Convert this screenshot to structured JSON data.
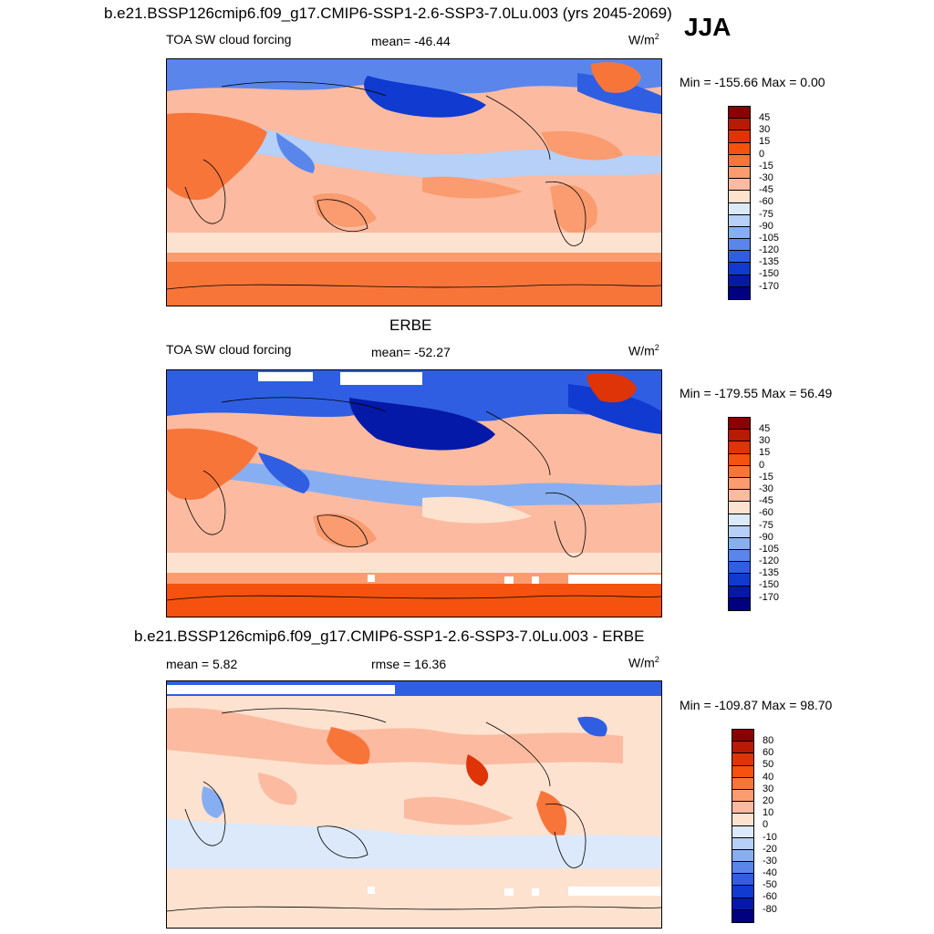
{
  "season": "JJA",
  "panels": [
    {
      "id": "model",
      "title": "b.e21.BSSP126cmip6.f09_g17.CMIP6-SSP1-2.6-SSP3-7.0Lu.003 (yrs 2045-2069)",
      "left_label": "TOA SW cloud forcing",
      "center_label": "mean= -46.44",
      "units": "W/m",
      "units_sup": "2",
      "minmax": "Min = -155.66 Max =   0.00",
      "levels": [
        "45",
        "30",
        "15",
        "0",
        "-15",
        "-30",
        "-45",
        "-60",
        "-75",
        "-90",
        "-105",
        "-120",
        "-135",
        "-150",
        "-170"
      ],
      "colors": [
        "#8b0000",
        "#b81a04",
        "#de3407",
        "#f4520e",
        "#f8753a",
        "#fa9c70",
        "#fcbba0",
        "#fde2d0",
        "#dbe9fa",
        "#b6d0f7",
        "#88aef2",
        "#5a86ec",
        "#2f5ee2",
        "#103ad0",
        "#0519a8",
        "#000080"
      ]
    },
    {
      "id": "obs",
      "title": "ERBE",
      "left_label": "TOA SW cloud forcing",
      "center_label": "mean= -52.27",
      "units": "W/m",
      "units_sup": "2",
      "minmax": "Min = -179.55 Max =  56.49",
      "levels": [
        "45",
        "30",
        "15",
        "0",
        "-15",
        "-30",
        "-45",
        "-60",
        "-75",
        "-90",
        "-105",
        "-120",
        "-135",
        "-150",
        "-170"
      ],
      "colors": [
        "#8b0000",
        "#b81a04",
        "#de3407",
        "#f4520e",
        "#f8753a",
        "#fa9c70",
        "#fcbba0",
        "#fde2d0",
        "#dbe9fa",
        "#b6d0f7",
        "#88aef2",
        "#5a86ec",
        "#2f5ee2",
        "#103ad0",
        "#0519a8",
        "#000080"
      ]
    },
    {
      "id": "diff",
      "title": "b.e21.BSSP126cmip6.f09_g17.CMIP6-SSP1-2.6-SSP3-7.0Lu.003 - ERBE",
      "left_label": "mean =   5.82",
      "center_label": "rmse =  16.36",
      "units": "W/m",
      "units_sup": "2",
      "minmax": "Min = -109.87 Max =  98.70",
      "levels": [
        "80",
        "60",
        "50",
        "40",
        "30",
        "20",
        "10",
        "0",
        "-10",
        "-20",
        "-30",
        "-40",
        "-50",
        "-60",
        "-80"
      ],
      "colors": [
        "#8b0000",
        "#b81a04",
        "#de3407",
        "#f4520e",
        "#f8753a",
        "#fa9c70",
        "#fcbba0",
        "#fde2d0",
        "#dbe9fa",
        "#b6d0f7",
        "#88aef2",
        "#5a86ec",
        "#2f5ee2",
        "#103ad0",
        "#0519a8",
        "#000080"
      ]
    }
  ],
  "chart_data": [
    {
      "type": "heatmap",
      "title": "b.e21.BSSP126cmip6.f09_g17.CMIP6-SSP1-2.6-SSP3-7.0Lu.003 (yrs 2045-2069)",
      "variable": "TOA SW cloud forcing",
      "units": "W/m2",
      "mean": -46.44,
      "min": -155.66,
      "max": 0.0,
      "contour_levels": [
        45,
        30,
        15,
        0,
        -15,
        -30,
        -45,
        -60,
        -75,
        -90,
        -105,
        -120,
        -135,
        -150,
        -170
      ]
    },
    {
      "type": "heatmap",
      "title": "ERBE",
      "variable": "TOA SW cloud forcing",
      "units": "W/m2",
      "mean": -52.27,
      "min": -179.55,
      "max": 56.49,
      "contour_levels": [
        45,
        30,
        15,
        0,
        -15,
        -30,
        -45,
        -60,
        -75,
        -90,
        -105,
        -120,
        -135,
        -150,
        -170
      ]
    },
    {
      "type": "heatmap",
      "title": "b.e21.BSSP126cmip6.f09_g17.CMIP6-SSP1-2.6-SSP3-7.0Lu.003 - ERBE",
      "units": "W/m2",
      "mean": 5.82,
      "rmse": 16.36,
      "min": -109.87,
      "max": 98.7,
      "contour_levels": [
        80,
        60,
        50,
        40,
        30,
        20,
        10,
        0,
        -10,
        -20,
        -30,
        -40,
        -50,
        -60,
        -80
      ]
    }
  ]
}
